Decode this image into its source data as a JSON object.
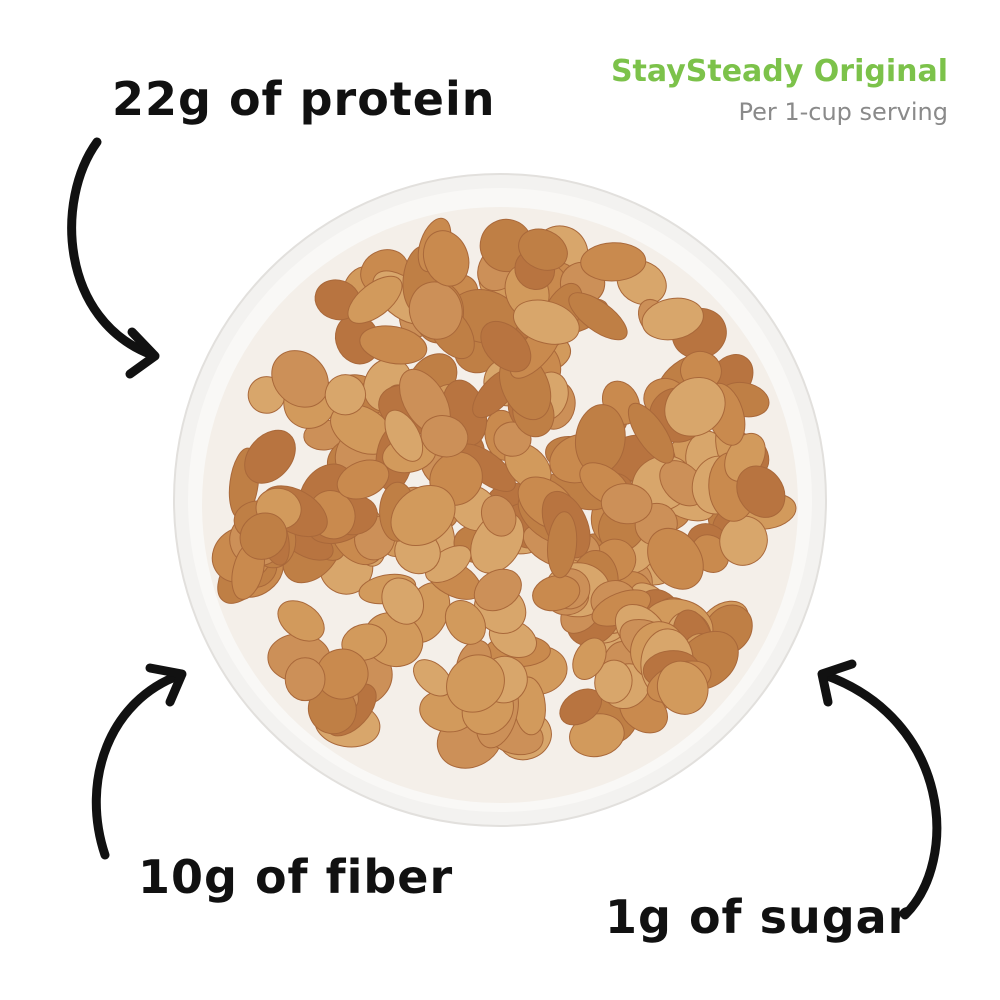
{
  "header": {
    "brand": "StaySteady Original",
    "serving": "Per 1-cup serving"
  },
  "callouts": {
    "protein": "22g of protein",
    "fiber": "10g of fiber",
    "sugar": "1g of sugar"
  },
  "colors": {
    "brand": "#7cc24a",
    "subtitle": "#8a8a8a",
    "text": "#111111",
    "flake": "#c98a4e",
    "milk": "#f4f1ee",
    "bowl": "#f7f6f4"
  }
}
